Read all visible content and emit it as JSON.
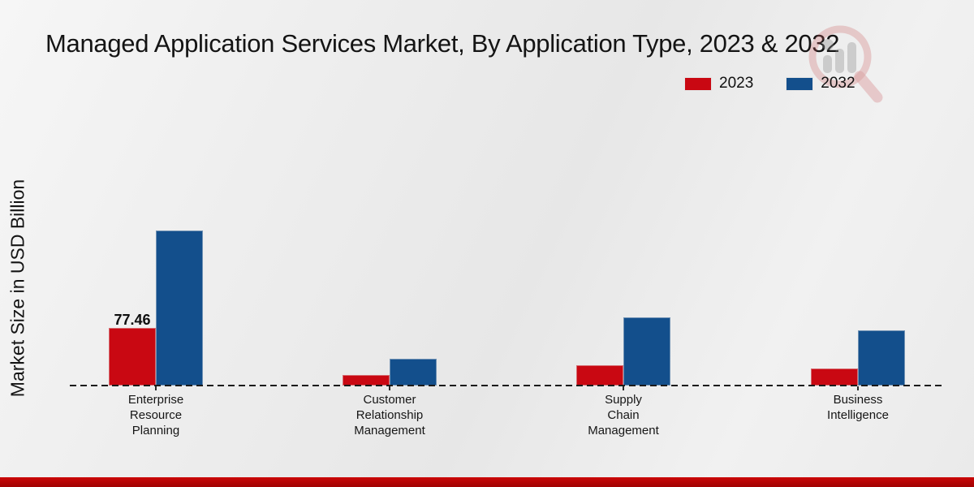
{
  "header": {
    "title": "Managed Application Services Market, By Application Type, 2023 & 2032"
  },
  "legend": {
    "items": [
      {
        "label": "2023",
        "color": "#c90812"
      },
      {
        "label": "2032",
        "color": "#134f8c"
      }
    ]
  },
  "axis": {
    "y_label": "Market Size in USD Billion"
  },
  "annotation": {
    "erp_2023_value": "77.46"
  },
  "chart_data": {
    "type": "bar",
    "title": "Managed Application Services Market, By Application Type, 2023 & 2032",
    "xlabel": "",
    "ylabel": "Market Size in USD Billion",
    "categories": [
      "Enterprise Resource Planning",
      "Customer Relationship Management",
      "Supply Chain Management",
      "Business Intelligence"
    ],
    "category_display_lines": [
      [
        "Enterprise",
        "Resource",
        "Planning"
      ],
      [
        "Customer",
        "Relationship",
        "Management"
      ],
      [
        "Supply",
        "Chain",
        "Management"
      ],
      [
        "Business",
        "Intelligence"
      ]
    ],
    "series": [
      {
        "name": "2023",
        "color": "#c90812",
        "values": [
          77.46,
          14.2,
          27.3,
          22.9
        ]
      },
      {
        "name": "2032",
        "color": "#134f8c",
        "values": [
          208.4,
          36.0,
          91.7,
          74.2
        ]
      }
    ],
    "data_labels": [
      [
        "77.46",
        null,
        null,
        null
      ],
      [
        null,
        null,
        null,
        null
      ]
    ],
    "ylim": [
      0,
      230
    ],
    "grid": false,
    "baseline_style": "dashed",
    "legend_position": "top-right"
  }
}
